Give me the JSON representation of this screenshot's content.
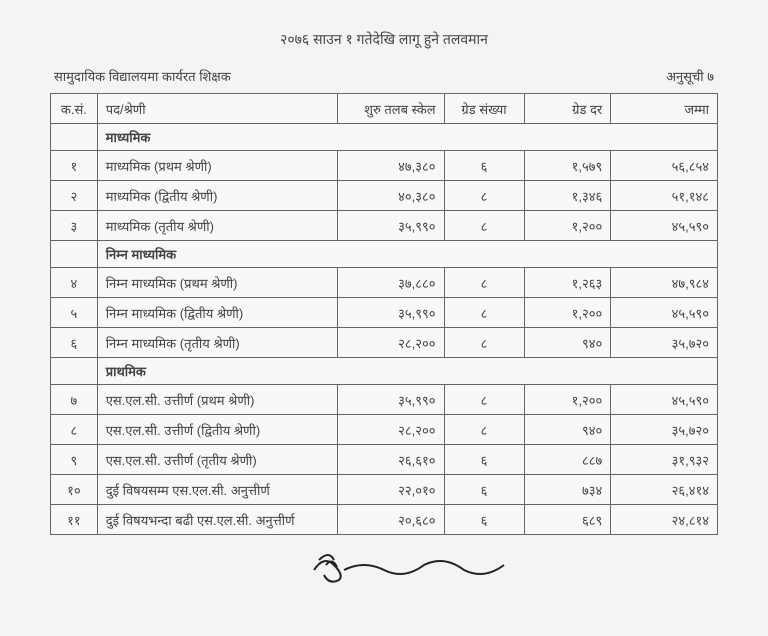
{
  "header": {
    "title": "२०७६ साउन १ गतेदेखि लागू हुने तलवमान",
    "subtitle_left": "सामुदायिक विद्यालयमा कार्यरत शिक्षक",
    "subtitle_right": "अनुसूची ७"
  },
  "columns": {
    "sn": "क.सं.",
    "position": "पद/श्रेणी",
    "salary_scale": "शुरु तलब स्केल",
    "grade_number": "ग्रेड संख्या",
    "grade_rate": "ग्रेड दर",
    "total": "जम्मा"
  },
  "sections": [
    {
      "title": "माध्यमिक",
      "rows": [
        {
          "sn": "१",
          "position": "माध्यमिक (प्रथम श्रेणी)",
          "salary": "४७,३८०",
          "grade_num": "६",
          "grade_rate": "१,५७९",
          "total": "५६,८५४"
        },
        {
          "sn": "२",
          "position": "माध्यमिक (द्वितीय श्रेणी)",
          "salary": "४०,३८०",
          "grade_num": "८",
          "grade_rate": "१,३४६",
          "total": "५१,१४८"
        },
        {
          "sn": "३",
          "position": "माध्यमिक (तृतीय श्रेणी)",
          "salary": "३५,९९०",
          "grade_num": "८",
          "grade_rate": "१,२००",
          "total": "४५,५९०"
        }
      ]
    },
    {
      "title": "निम्न माध्यमिक",
      "rows": [
        {
          "sn": "४",
          "position": "निम्न माध्यमिक (प्रथम श्रेणी)",
          "salary": "३७,८८०",
          "grade_num": "८",
          "grade_rate": "१,२६३",
          "total": "४७,९८४"
        },
        {
          "sn": "५",
          "position": "निम्न माध्यमिक (द्वितीय श्रेणी)",
          "salary": "३५,९९०",
          "grade_num": "८",
          "grade_rate": "१,२००",
          "total": "४५,५९०"
        },
        {
          "sn": "६",
          "position": "निम्न माध्यमिक (तृतीय श्रेणी)",
          "salary": "२८,२००",
          "grade_num": "८",
          "grade_rate": "९४०",
          "total": "३५,७२०"
        }
      ]
    },
    {
      "title": "प्राथमिक",
      "rows": [
        {
          "sn": "७",
          "position": "एस.एल.सी. उत्तीर्ण (प्रथम श्रेणी)",
          "salary": "३५,९९०",
          "grade_num": "८",
          "grade_rate": "१,२००",
          "total": "४५,५९०"
        },
        {
          "sn": "८",
          "position": "एस.एल.सी. उत्तीर्ण (द्वितीय श्रेणी)",
          "salary": "२८,२००",
          "grade_num": "८",
          "grade_rate": "९४०",
          "total": "३५,७२०"
        },
        {
          "sn": "९",
          "position": "एस.एल.सी. उत्तीर्ण (तृतीय श्रेणी)",
          "salary": "२६,६१०",
          "grade_num": "६",
          "grade_rate": "८८७",
          "total": "३१,९३२"
        },
        {
          "sn": "१०",
          "position": "दुई विषयसम्म एस.एल.सी. अनुत्तीर्ण",
          "salary": "२२,०१०",
          "grade_num": "६",
          "grade_rate": "७३४",
          "total": "२६,४१४"
        },
        {
          "sn": "११",
          "position": "दुई विषयभन्दा बढी एस.एल.सी. अनुत्तीर्ण",
          "salary": "२०,६८०",
          "grade_num": "६",
          "grade_rate": "६८९",
          "total": "२४,८१४"
        }
      ]
    }
  ]
}
